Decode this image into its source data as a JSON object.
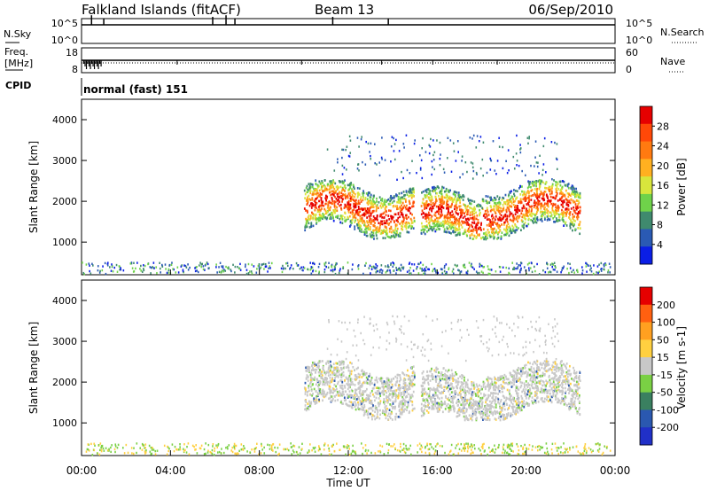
{
  "header": {
    "station": "Falkland Islands (fitACF)",
    "beam": "Beam 13",
    "date": "06/Sep/2010"
  },
  "top_panels": {
    "nsky": {
      "label": "N.Sky",
      "tick_hi": "10^5",
      "tick_lo": "10^0",
      "right_label": "N.Search",
      "right_tick_hi": "10^5",
      "right_tick_lo": "10^0"
    },
    "freq": {
      "label_a": "Freq.",
      "label_b": "[MHz]",
      "tick_hi": "18",
      "tick_lo": "8",
      "right_label": "Nave",
      "right_tick_hi": "60",
      "right_tick_lo": "0"
    },
    "cpid": {
      "label": "CPID",
      "mode": "normal (fast) 151"
    }
  },
  "chart_data": [
    {
      "type": "heatmap",
      "name": "power",
      "ylabel": "Slant Range [km]",
      "ylim": [
        200,
        4500
      ],
      "yticks": [
        1000,
        2000,
        3000,
        4000
      ],
      "colorbar": {
        "label": "Power [dB]",
        "ticks": [
          "4",
          "8",
          "12",
          "16",
          "20",
          "24",
          "28"
        ],
        "colors": [
          "#0a1ee6",
          "#2a5ab4",
          "#3f8a6e",
          "#6fd24a",
          "#d8e63c",
          "#ffb020",
          "#ff7a10",
          "#ff4808",
          "#e60000"
        ]
      }
    },
    {
      "type": "heatmap",
      "name": "velocity",
      "ylabel": "Slant Range [km]",
      "ylim": [
        200,
        4500
      ],
      "yticks": [
        1000,
        2000,
        3000,
        4000
      ],
      "colorbar": {
        "label": "Velocity [m s-1]",
        "ticks": [
          "200",
          "100",
          "50",
          "15",
          "-15",
          "-50",
          "-100",
          "-200"
        ],
        "colors": [
          "#2030c8",
          "#2a58b0",
          "#3a8060",
          "#7ad044",
          "#c8c8c8",
          "#ffd040",
          "#ffa020",
          "#ff6010",
          "#e60000"
        ]
      }
    }
  ],
  "x_axis": {
    "label": "Time UT",
    "ticks": [
      "00:00",
      "04:00",
      "08:00",
      "12:00",
      "16:00",
      "20:00",
      "00:00"
    ]
  }
}
